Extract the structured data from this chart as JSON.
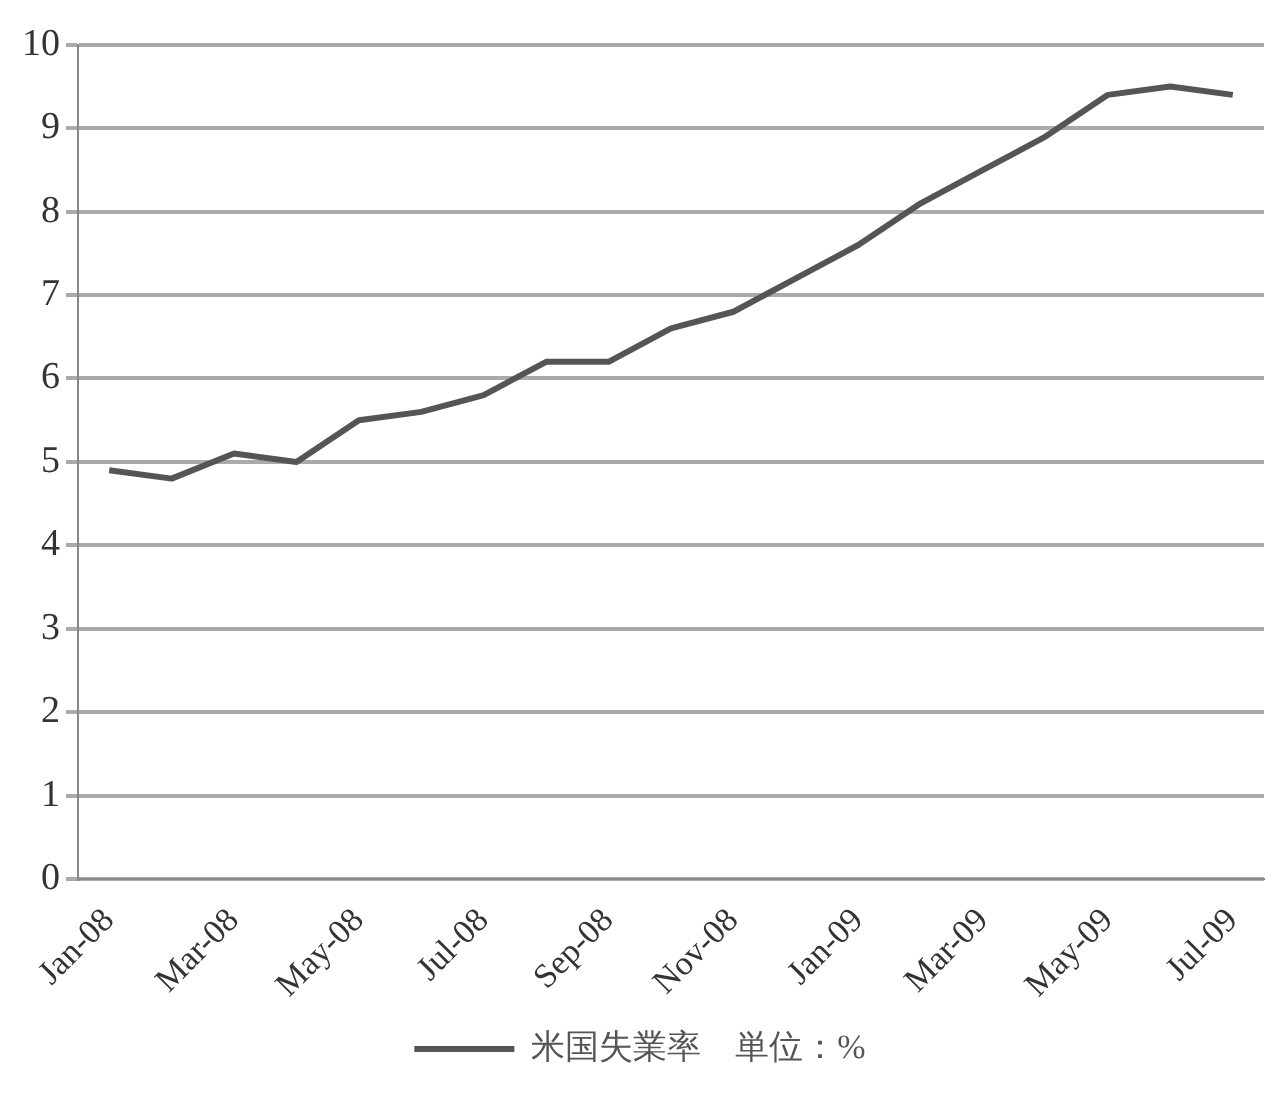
{
  "chart_data": {
    "type": "line",
    "categories": [
      "Jan-08",
      null,
      "Mar-08",
      null,
      "May-08",
      null,
      "Jul-08",
      null,
      "Sep-08",
      null,
      "Nov-08",
      null,
      "Jan-09",
      null,
      "Mar-09",
      null,
      "May-09",
      null,
      "Jul-09"
    ],
    "series": [
      {
        "name": "米国失業率　単位：%",
        "color": "#555555",
        "values": [
          4.9,
          4.8,
          5.1,
          5.0,
          5.5,
          5.6,
          5.8,
          6.2,
          6.2,
          6.6,
          6.8,
          7.2,
          7.6,
          8.1,
          8.5,
          8.9,
          9.4,
          9.5,
          9.4
        ]
      }
    ],
    "ylim": [
      0,
      10
    ],
    "yticks": [
      0,
      1,
      2,
      3,
      4,
      5,
      6,
      7,
      8,
      9,
      10
    ],
    "grid": "y",
    "legend": "bottom",
    "marker": "none",
    "line_style": "solid"
  }
}
